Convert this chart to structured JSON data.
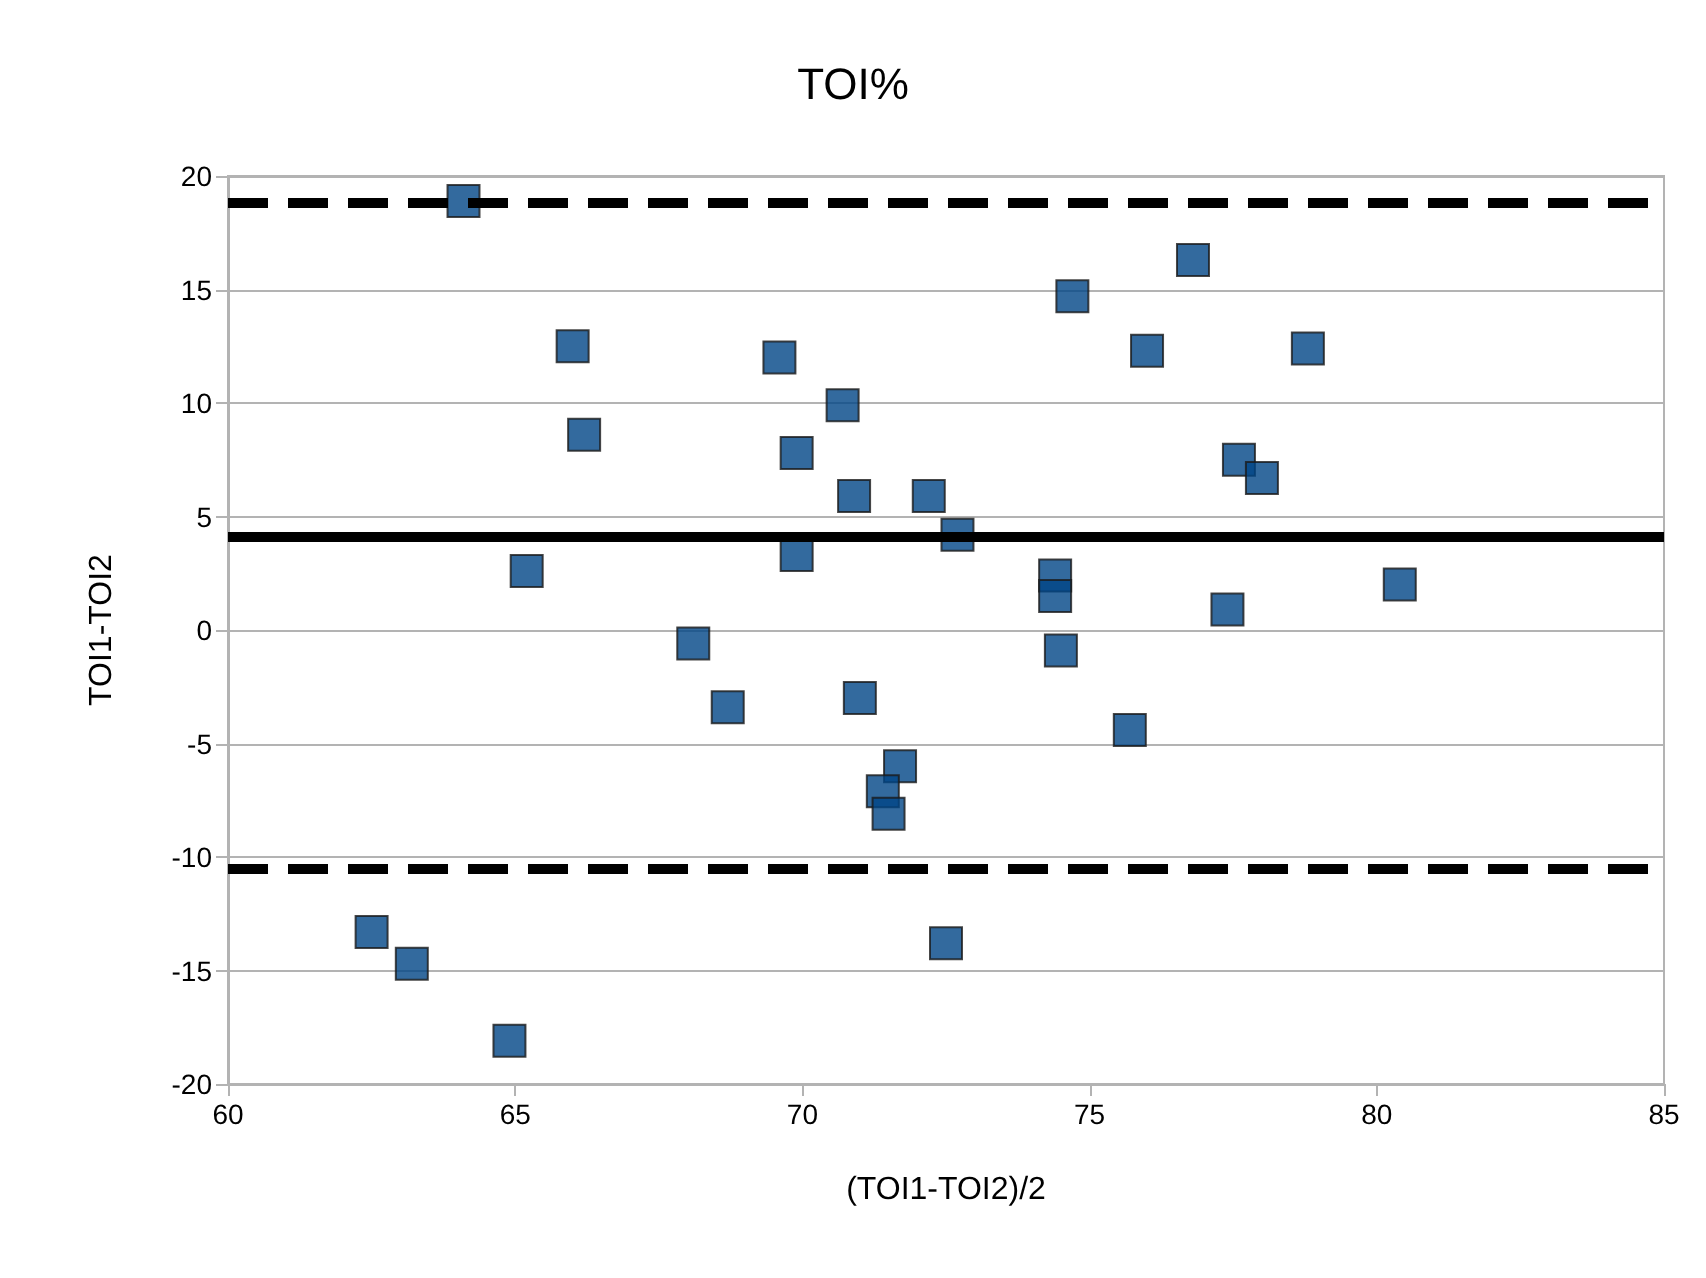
{
  "chart_data": {
    "type": "scatter",
    "title": "TOI%",
    "xlabel": "(TOI1-TOI2)/2",
    "ylabel": "TOI1-TOI2",
    "x": [
      64.1,
      66.0,
      66.2,
      65.2,
      69.6,
      69.9,
      69.9,
      70.7,
      70.9,
      68.1,
      68.7,
      71.0,
      71.7,
      71.4,
      71.5,
      72.2,
      72.7,
      72.5,
      74.4,
      74.4,
      74.5,
      74.7,
      75.7,
      76.0,
      76.8,
      77.4,
      77.6,
      78.0,
      78.8,
      80.4,
      62.5,
      63.2,
      64.9
    ],
    "values": [
      18.9,
      12.5,
      8.6,
      2.6,
      12.0,
      7.8,
      3.3,
      9.9,
      5.9,
      -0.6,
      -3.4,
      -3.0,
      -6.0,
      -7.1,
      -8.1,
      5.9,
      4.2,
      -13.8,
      2.4,
      1.5,
      -0.9,
      14.7,
      -4.4,
      12.3,
      16.3,
      0.9,
      7.5,
      6.7,
      12.4,
      2.0,
      -13.3,
      -14.7,
      -18.1
    ],
    "color": "#004586",
    "marker": "square",
    "xlim": [
      60,
      85
    ],
    "xticks": [
      60,
      65,
      70,
      75,
      80,
      85
    ],
    "ylim": [
      -20,
      20
    ],
    "yticks": [
      -20,
      -15,
      -10,
      -5,
      0,
      5,
      10,
      15,
      20
    ],
    "grid": "y",
    "ref_lines": [
      {
        "axis": "y",
        "value": 18.8,
        "line_style": "dashed",
        "color": "#000000"
      },
      {
        "axis": "y",
        "value": 4.1,
        "line_style": "solid",
        "color": "#000000"
      },
      {
        "axis": "y",
        "value": -10.5,
        "line_style": "dashed",
        "color": "#000000"
      }
    ]
  }
}
